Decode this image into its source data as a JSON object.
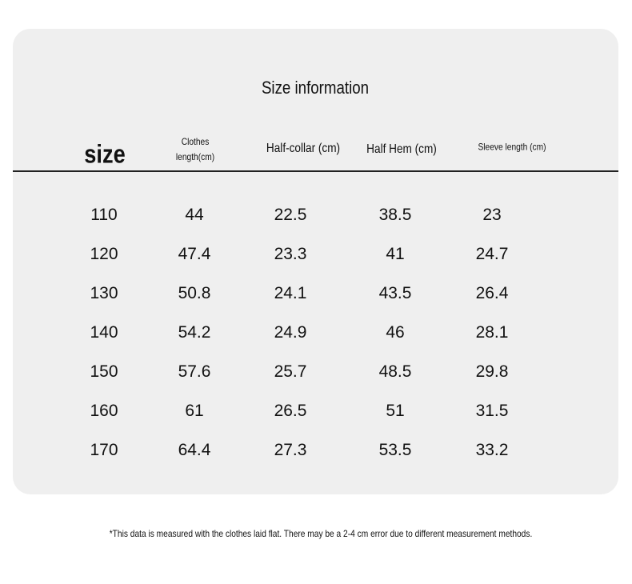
{
  "title": "Size information",
  "table": {
    "headers": [
      "size",
      "Clothes length(cm)",
      "Half-collar (cm)",
      "Half Hem (cm)",
      "Sleeve length (cm)"
    ],
    "rows": [
      [
        "110",
        "44",
        "22.5",
        "38.5",
        "23"
      ],
      [
        "120",
        "47.4",
        "23.3",
        "41",
        "24.7"
      ],
      [
        "130",
        "50.8",
        "24.1",
        "43.5",
        "26.4"
      ],
      [
        "140",
        "54.2",
        "24.9",
        "46",
        "28.1"
      ],
      [
        "150",
        "57.6",
        "25.7",
        "48.5",
        "29.8"
      ],
      [
        "160",
        "61",
        "26.5",
        "51",
        "31.5"
      ],
      [
        "170",
        "64.4",
        "27.3",
        "53.5",
        "33.2"
      ]
    ]
  },
  "footnote": "*This data is measured with the clothes laid flat. There may be a 2-4 cm error due to different measurement methods."
}
